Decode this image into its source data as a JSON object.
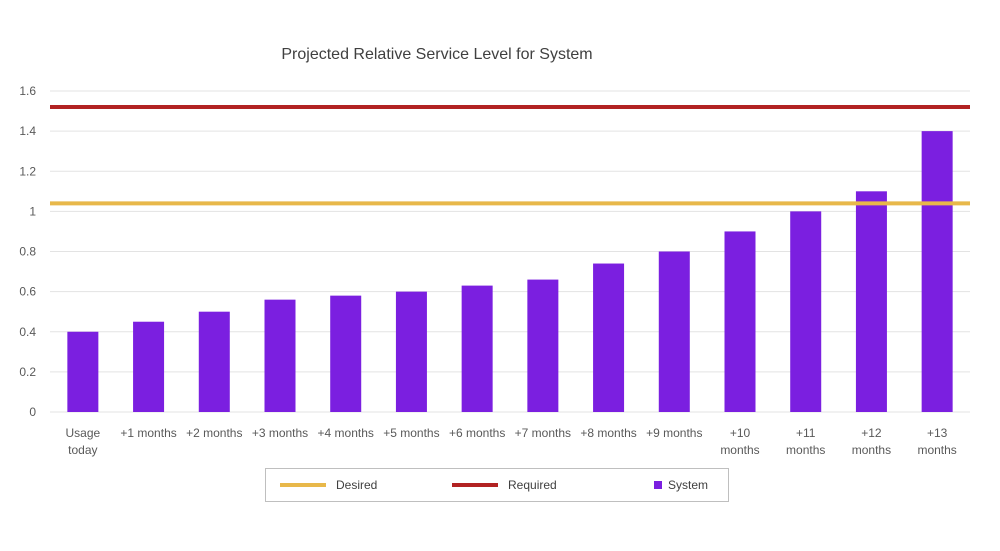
{
  "chart_data": {
    "type": "bar",
    "title": "Projected Relative Service Level for System",
    "categories": [
      [
        "Usage",
        "today"
      ],
      [
        "+1 months"
      ],
      [
        "+2 months"
      ],
      [
        "+3 months"
      ],
      [
        "+4 months"
      ],
      [
        "+5 months"
      ],
      [
        "+6 months"
      ],
      [
        "+7 months"
      ],
      [
        "+8 months"
      ],
      [
        "+9 months"
      ],
      [
        "+10",
        "months"
      ],
      [
        "+11",
        "months"
      ],
      [
        "+12",
        "months"
      ],
      [
        "+13",
        "months"
      ]
    ],
    "series": [
      {
        "name": "System",
        "type": "bar",
        "color": "#7b1fe0",
        "values": [
          0.4,
          0.45,
          0.5,
          0.56,
          0.58,
          0.6,
          0.63,
          0.66,
          0.74,
          0.8,
          0.9,
          1.0,
          1.1,
          1.4
        ]
      },
      {
        "name": "Desired",
        "type": "line",
        "color": "#e8b84a",
        "value": 1.04
      },
      {
        "name": "Required",
        "type": "line",
        "color": "#b22222",
        "value": 1.52
      }
    ],
    "yticks": [
      "0",
      "0.2",
      "0.4",
      "0.6",
      "0.8",
      "1",
      "1.2",
      "1.4",
      "1.6"
    ],
    "ylim": [
      0,
      1.6
    ],
    "grid": true,
    "legend": {
      "position": "bottom",
      "items": [
        {
          "label": "Desired",
          "kind": "line",
          "color": "#e8b84a"
        },
        {
          "label": "Required",
          "kind": "line",
          "color": "#b22222"
        },
        {
          "label": "System",
          "kind": "square",
          "color": "#7b1fe0"
        }
      ]
    }
  }
}
